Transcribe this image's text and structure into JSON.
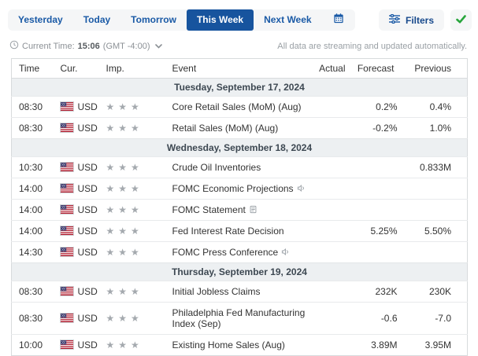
{
  "icons": {
    "star": "★"
  },
  "toolbar": {
    "tabs": [
      {
        "label": "Yesterday",
        "active": false
      },
      {
        "label": "Today",
        "active": false
      },
      {
        "label": "Tomorrow",
        "active": false
      },
      {
        "label": "This Week",
        "active": true
      },
      {
        "label": "Next Week",
        "active": false
      }
    ],
    "filters_label": "Filters"
  },
  "statusbar": {
    "current_time_label": "Current Time:",
    "current_time": "15:06",
    "timezone": "(GMT -4:00)",
    "streaming_note": "All data are streaming and updated automatically."
  },
  "table": {
    "columns": [
      "Time",
      "Cur.",
      "Imp.",
      "Event",
      "Actual",
      "Forecast",
      "Previous"
    ],
    "sections": [
      {
        "date": "Tuesday, September 17, 2024",
        "rows": [
          {
            "time": "08:30",
            "currency": "USD",
            "importance": 3,
            "event": "Core Retail Sales (MoM) (Aug)",
            "actual": "",
            "forecast": "0.2%",
            "previous": "0.4%"
          },
          {
            "time": "08:30",
            "currency": "USD",
            "importance": 3,
            "event": "Retail Sales (MoM) (Aug)",
            "actual": "",
            "forecast": "-0.2%",
            "previous": "1.0%"
          }
        ]
      },
      {
        "date": "Wednesday, September 18, 2024",
        "rows": [
          {
            "time": "10:30",
            "currency": "USD",
            "importance": 3,
            "event": "Crude Oil Inventories",
            "actual": "",
            "forecast": "",
            "previous": "0.833M"
          },
          {
            "time": "14:00",
            "currency": "USD",
            "importance": 3,
            "event": "FOMC Economic Projections",
            "event_icon": "speaker",
            "actual": "",
            "forecast": "",
            "previous": ""
          },
          {
            "time": "14:00",
            "currency": "USD",
            "importance": 3,
            "event": "FOMC Statement",
            "event_icon": "report",
            "actual": "",
            "forecast": "",
            "previous": ""
          },
          {
            "time": "14:00",
            "currency": "USD",
            "importance": 3,
            "event": "Fed Interest Rate Decision",
            "actual": "",
            "forecast": "5.25%",
            "previous": "5.50%"
          },
          {
            "time": "14:30",
            "currency": "USD",
            "importance": 3,
            "event": "FOMC Press Conference",
            "event_icon": "speaker",
            "actual": "",
            "forecast": "",
            "previous": ""
          }
        ]
      },
      {
        "date": "Thursday, September 19, 2024",
        "rows": [
          {
            "time": "08:30",
            "currency": "USD",
            "importance": 3,
            "event": "Initial Jobless Claims",
            "actual": "",
            "forecast": "232K",
            "previous": "230K"
          },
          {
            "time": "08:30",
            "currency": "USD",
            "importance": 3,
            "event": "Philadelphia Fed Manufacturing Index (Sep)",
            "actual": "",
            "forecast": "-0.6",
            "previous": "-7.0"
          },
          {
            "time": "10:00",
            "currency": "USD",
            "importance": 3,
            "event": "Existing Home Sales (Aug)",
            "actual": "",
            "forecast": "3.89M",
            "previous": "3.95M"
          }
        ]
      }
    ]
  }
}
